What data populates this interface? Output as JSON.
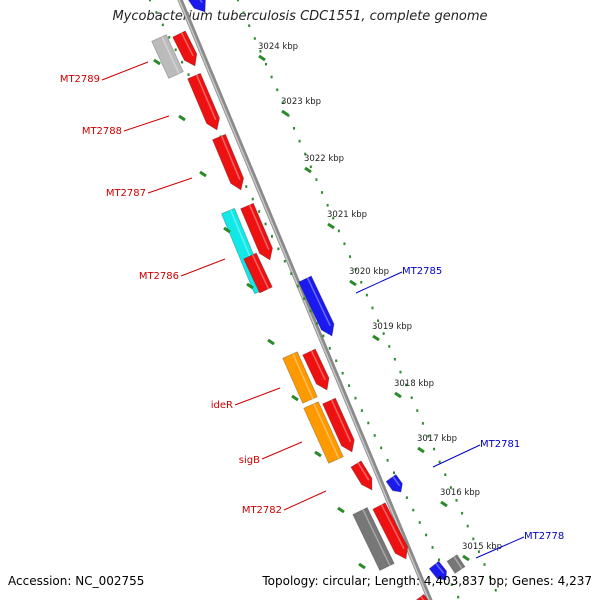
{
  "title": "Mycobacterium tuberculosis CDC1551, complete genome",
  "accession": "Accession: NC_002755",
  "topology": "Topology: circular; Length: 4,403,837 bp; Genes: 4,237",
  "colors": {
    "red": "#ee1111",
    "blue": "#1a1aee",
    "cyan": "#11e8e8",
    "orange": "#ff9900",
    "gray": "#777777",
    "lightgray": "#bbbbbb",
    "backbone": "#909090",
    "dots": "#2a8a2a",
    "label_red": "#cc0000",
    "label_blue": "#0000cc"
  },
  "ticks": [
    {
      "label": "3024 kbp"
    },
    {
      "label": "3023 kbp"
    },
    {
      "label": "3022 kbp"
    },
    {
      "label": "3021 kbp"
    },
    {
      "label": "3020 kbp"
    },
    {
      "label": "3019 kbp"
    },
    {
      "label": "3018 kbp"
    },
    {
      "label": "3017 kbp"
    },
    {
      "label": "3016 kbp"
    },
    {
      "label": "3015 kbp"
    }
  ],
  "gene_labels": [
    {
      "text": "MT2789",
      "strand": "left"
    },
    {
      "text": "MT2788",
      "strand": "left"
    },
    {
      "text": "MT2787",
      "strand": "left"
    },
    {
      "text": "MT2786",
      "strand": "left"
    },
    {
      "text": "ideR",
      "strand": "left"
    },
    {
      "text": "sigB",
      "strand": "left"
    },
    {
      "text": "MT2782",
      "strand": "left"
    },
    {
      "text": "MT2785",
      "strand": "right"
    },
    {
      "text": "MT2781",
      "strand": "right"
    },
    {
      "text": "MT2778",
      "strand": "right"
    }
  ]
}
